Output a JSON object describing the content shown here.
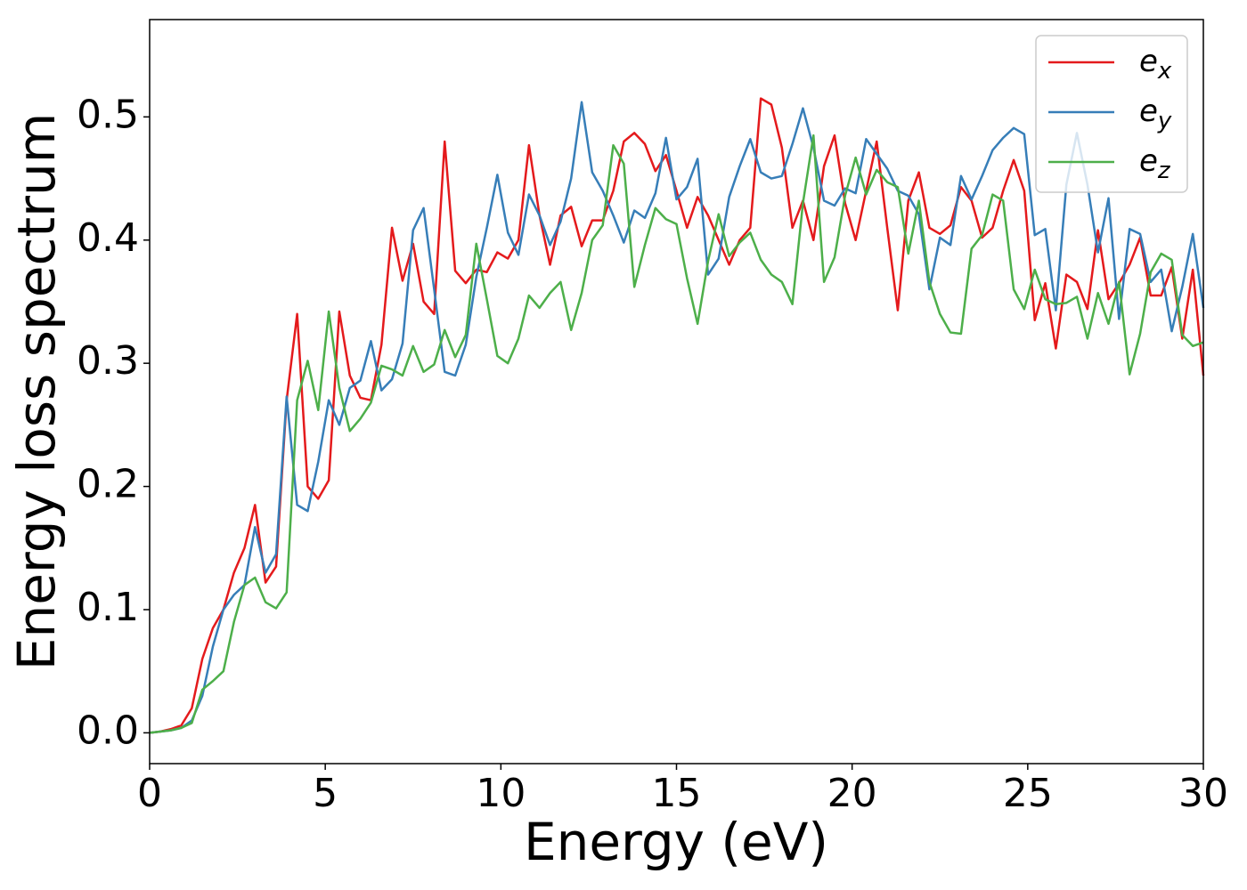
{
  "chart_data": {
    "type": "line",
    "xlabel": "Energy (eV)",
    "ylabel": "Energy loss spectrum",
    "x": [
      0,
      0.3,
      0.6,
      0.9,
      1.2,
      1.5,
      1.8,
      2.1,
      2.4,
      2.7,
      3.0,
      3.3,
      3.6,
      3.9,
      4.2,
      4.5,
      4.8,
      5.1,
      5.4,
      5.7,
      6.0,
      6.3,
      6.6,
      6.9,
      7.2,
      7.5,
      7.8,
      8.1,
      8.4,
      8.7,
      9.0,
      9.3,
      9.6,
      9.9,
      10.2,
      10.5,
      10.8,
      11.1,
      11.4,
      11.7,
      12.0,
      12.3,
      12.6,
      12.9,
      13.2,
      13.5,
      13.8,
      14.1,
      14.4,
      14.7,
      15.0,
      15.3,
      15.6,
      15.9,
      16.2,
      16.5,
      16.8,
      17.1,
      17.4,
      17.7,
      18.0,
      18.3,
      18.6,
      18.9,
      19.2,
      19.5,
      19.8,
      20.1,
      20.4,
      20.7,
      21.0,
      21.3,
      21.6,
      21.9,
      22.2,
      22.5,
      22.8,
      23.1,
      23.4,
      23.7,
      24.0,
      24.3,
      24.6,
      24.9,
      25.2,
      25.5,
      25.8,
      26.1,
      26.4,
      26.7,
      27.0,
      27.3,
      27.6,
      27.9,
      28.2,
      28.5,
      28.8,
      29.1,
      29.4,
      29.7,
      30.0
    ],
    "series": [
      {
        "name": "e_x",
        "color": "#e41a1c",
        "values": [
          0,
          0.001,
          0.003,
          0.006,
          0.02,
          0.06,
          0.085,
          0.1,
          0.13,
          0.15,
          0.185,
          0.122,
          0.135,
          0.27,
          0.34,
          0.2,
          0.19,
          0.205,
          0.342,
          0.29,
          0.272,
          0.27,
          0.315,
          0.41,
          0.367,
          0.397,
          0.35,
          0.34,
          0.48,
          0.375,
          0.365,
          0.376,
          0.374,
          0.39,
          0.385,
          0.4,
          0.477,
          0.42,
          0.38,
          0.42,
          0.427,
          0.395,
          0.416,
          0.416,
          0.44,
          0.48,
          0.487,
          0.478,
          0.456,
          0.469,
          0.44,
          0.41,
          0.435,
          0.42,
          0.4,
          0.38,
          0.4,
          0.41,
          0.515,
          0.51,
          0.475,
          0.41,
          0.432,
          0.4,
          0.46,
          0.485,
          0.43,
          0.4,
          0.44,
          0.48,
          0.41,
          0.343,
          0.432,
          0.455,
          0.41,
          0.405,
          0.412,
          0.443,
          0.432,
          0.402,
          0.41,
          0.44,
          0.465,
          0.44,
          0.335,
          0.365,
          0.312,
          0.372,
          0.366,
          0.344,
          0.408,
          0.352,
          0.365,
          0.38,
          0.402,
          0.355,
          0.355,
          0.378,
          0.32,
          0.376,
          0.29
        ]
      },
      {
        "name": "e_y",
        "color": "#377eb8",
        "values": [
          0,
          0.001,
          0.002,
          0.004,
          0.01,
          0.03,
          0.07,
          0.1,
          0.112,
          0.12,
          0.167,
          0.13,
          0.145,
          0.273,
          0.185,
          0.18,
          0.22,
          0.27,
          0.25,
          0.28,
          0.286,
          0.318,
          0.278,
          0.287,
          0.316,
          0.408,
          0.426,
          0.36,
          0.293,
          0.29,
          0.315,
          0.37,
          0.41,
          0.453,
          0.406,
          0.388,
          0.437,
          0.42,
          0.396,
          0.415,
          0.45,
          0.512,
          0.455,
          0.44,
          0.42,
          0.398,
          0.424,
          0.418,
          0.438,
          0.483,
          0.433,
          0.443,
          0.466,
          0.372,
          0.385,
          0.435,
          0.46,
          0.482,
          0.455,
          0.45,
          0.452,
          0.478,
          0.507,
          0.475,
          0.432,
          0.428,
          0.442,
          0.438,
          0.482,
          0.47,
          0.458,
          0.44,
          0.436,
          0.421,
          0.36,
          0.402,
          0.396,
          0.452,
          0.433,
          0.452,
          0.473,
          0.483,
          0.491,
          0.486,
          0.404,
          0.409,
          0.343,
          0.445,
          0.487,
          0.445,
          0.39,
          0.434,
          0.336,
          0.409,
          0.405,
          0.366,
          0.376,
          0.326,
          0.362,
          0.405,
          0.345
        ]
      },
      {
        "name": "e_z",
        "color": "#4daf4a",
        "values": [
          0,
          0.001,
          0.002,
          0.004,
          0.008,
          0.035,
          0.042,
          0.05,
          0.09,
          0.12,
          0.126,
          0.106,
          0.101,
          0.114,
          0.27,
          0.302,
          0.262,
          0.342,
          0.28,
          0.245,
          0.255,
          0.268,
          0.298,
          0.295,
          0.29,
          0.314,
          0.293,
          0.299,
          0.327,
          0.305,
          0.323,
          0.397,
          0.352,
          0.306,
          0.3,
          0.32,
          0.355,
          0.345,
          0.357,
          0.366,
          0.327,
          0.357,
          0.4,
          0.412,
          0.477,
          0.462,
          0.362,
          0.396,
          0.426,
          0.417,
          0.413,
          0.369,
          0.332,
          0.383,
          0.421,
          0.387,
          0.398,
          0.406,
          0.384,
          0.372,
          0.366,
          0.348,
          0.43,
          0.485,
          0.366,
          0.386,
          0.436,
          0.467,
          0.437,
          0.457,
          0.447,
          0.443,
          0.389,
          0.432,
          0.366,
          0.34,
          0.325,
          0.324,
          0.393,
          0.404,
          0.437,
          0.432,
          0.36,
          0.344,
          0.376,
          0.352,
          0.348,
          0.349,
          0.354,
          0.32,
          0.357,
          0.332,
          0.366,
          0.291,
          0.324,
          0.374,
          0.389,
          0.384,
          0.323,
          0.314,
          0.317
        ]
      }
    ],
    "xlim": [
      0,
      30
    ],
    "xticks": [
      0,
      5,
      10,
      15,
      20,
      25,
      30
    ],
    "ylim": [
      -0.025,
      0.579
    ],
    "yticks": [
      {
        "value": 0,
        "label": "0.0"
      },
      0.1,
      0.2,
      0.3,
      0.4,
      0.5
    ],
    "grid": false,
    "legend": "upper right"
  }
}
